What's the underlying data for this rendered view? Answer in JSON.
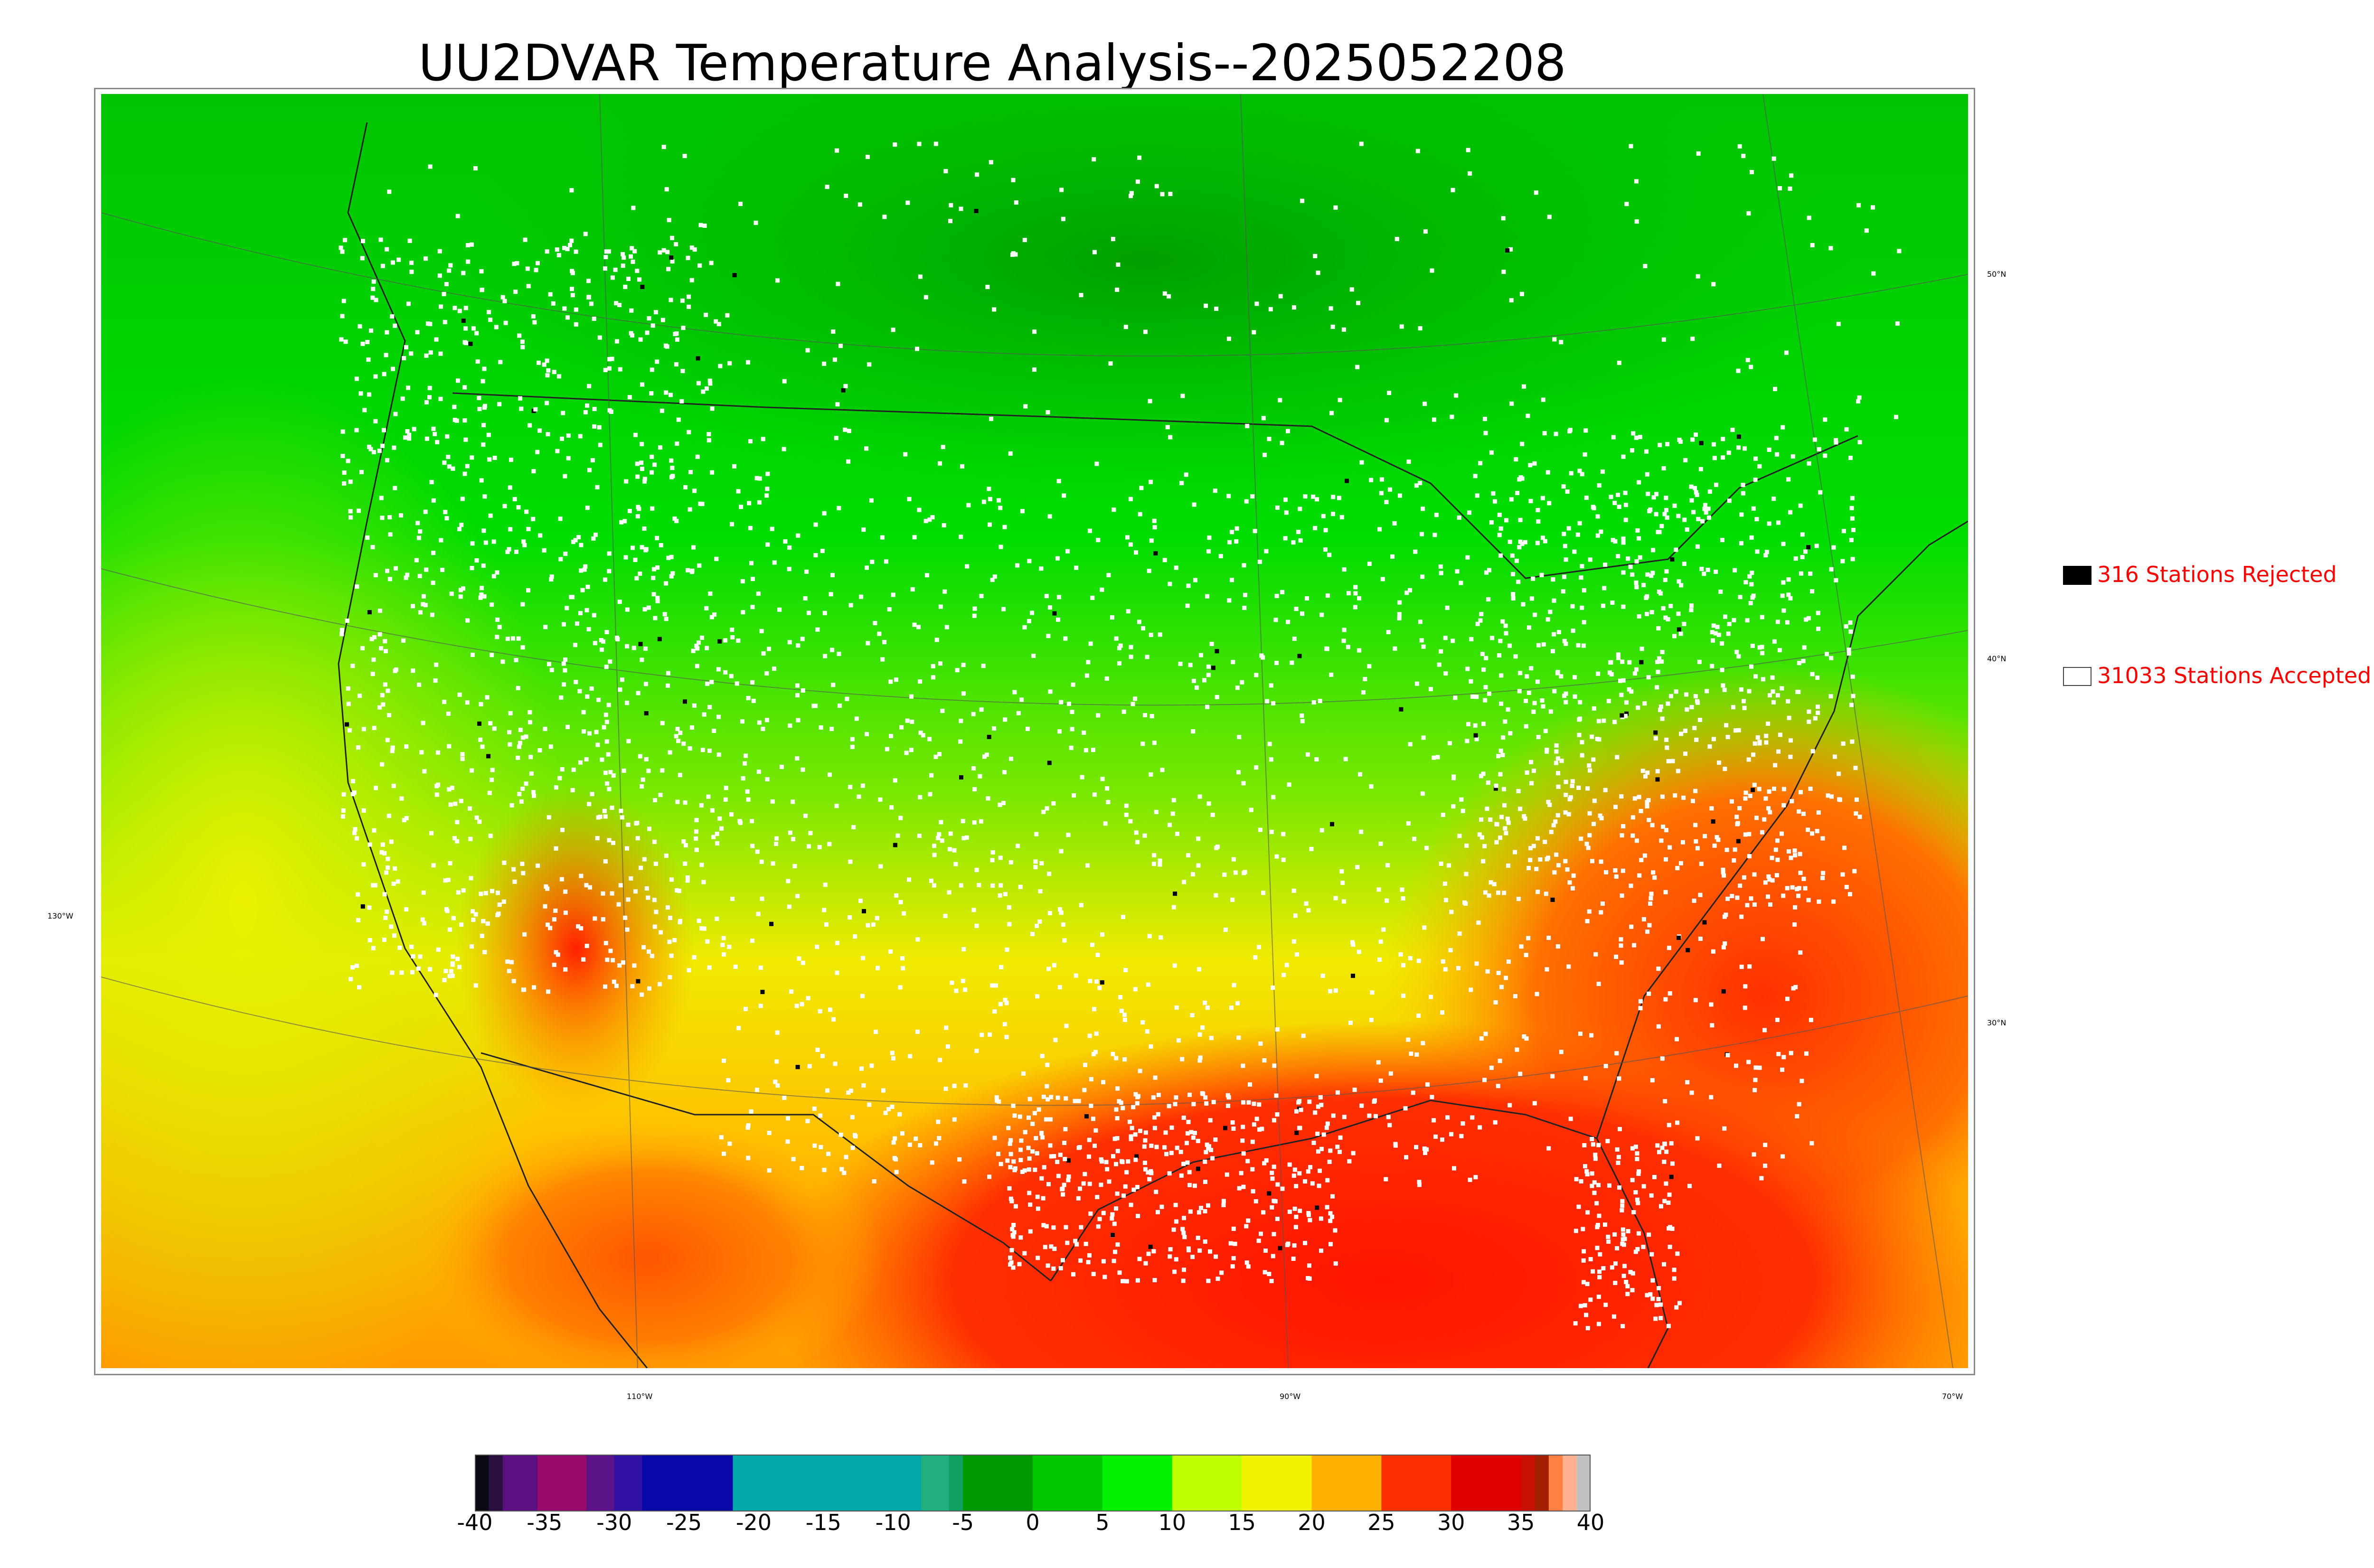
{
  "title": "UU2DVAR Temperature Analysis--2025052208",
  "graticule": {
    "lat_labels": [
      "50°N",
      "40°N",
      "30°N"
    ],
    "lon_labels": [
      "130°W",
      "110°W",
      "90°W",
      "70°W"
    ]
  },
  "legend": {
    "rejected": {
      "label": "316 Stations Rejected",
      "count": 316,
      "swatch_color": "#000000"
    },
    "accepted": {
      "label": "31033 Stations Accepted",
      "count": 31033,
      "swatch_color": "#ffffff"
    }
  },
  "colorbar": {
    "ticks": [
      "-40",
      "-35",
      "-30",
      "-25",
      "-20",
      "-15",
      "-10",
      "-5",
      "0",
      "5",
      "10",
      "15",
      "20",
      "25",
      "30",
      "35",
      "40"
    ],
    "range": [
      -40,
      40
    ],
    "segments": [
      {
        "from": -40,
        "to": -39,
        "color": "#0a0a14"
      },
      {
        "from": -39,
        "to": -38,
        "color": "#2a1040"
      },
      {
        "from": -38,
        "to": -35.5,
        "color": "#5a1080"
      },
      {
        "from": -35.5,
        "to": -32,
        "color": "#9a0a6a"
      },
      {
        "from": -32,
        "to": -30,
        "color": "#5a1488"
      },
      {
        "from": -30,
        "to": -28,
        "color": "#3010a0"
      },
      {
        "from": -28,
        "to": -21.5,
        "color": "#0808a8"
      },
      {
        "from": -21.5,
        "to": -13,
        "color": "#00a8a8"
      },
      {
        "from": -13,
        "to": -8,
        "color": "#00a8a8"
      },
      {
        "from": -8,
        "to": -6,
        "color": "#20b080"
      },
      {
        "from": -6,
        "to": -5,
        "color": "#10a060"
      },
      {
        "from": -5,
        "to": 0,
        "color": "#009800"
      },
      {
        "from": 0,
        "to": 5,
        "color": "#00c800"
      },
      {
        "from": 5,
        "to": 10,
        "color": "#00f000"
      },
      {
        "from": 10,
        "to": 15,
        "color": "#c0ff00"
      },
      {
        "from": 15,
        "to": 20,
        "color": "#f0f000"
      },
      {
        "from": 20,
        "to": 25,
        "color": "#ffb000"
      },
      {
        "from": 25,
        "to": 30,
        "color": "#ff3000"
      },
      {
        "from": 30,
        "to": 35,
        "color": "#e00000"
      },
      {
        "from": 35,
        "to": 36,
        "color": "#c81000"
      },
      {
        "from": 36,
        "to": 37,
        "color": "#a02000"
      },
      {
        "from": 37,
        "to": 38,
        "color": "#ff8040"
      },
      {
        "from": 38,
        "to": 39,
        "color": "#ffb090"
      },
      {
        "from": 39,
        "to": 40,
        "color": "#c0c0c0"
      }
    ]
  },
  "colors": {
    "cold": "#00aa00",
    "cool": "#00ee00",
    "mild": "#ccf000",
    "warm": "#ffc000",
    "hot": "#ff2a00",
    "accepted_marker": "#ffffff",
    "rejected_marker": "#000000",
    "boundary": "#222222"
  }
}
